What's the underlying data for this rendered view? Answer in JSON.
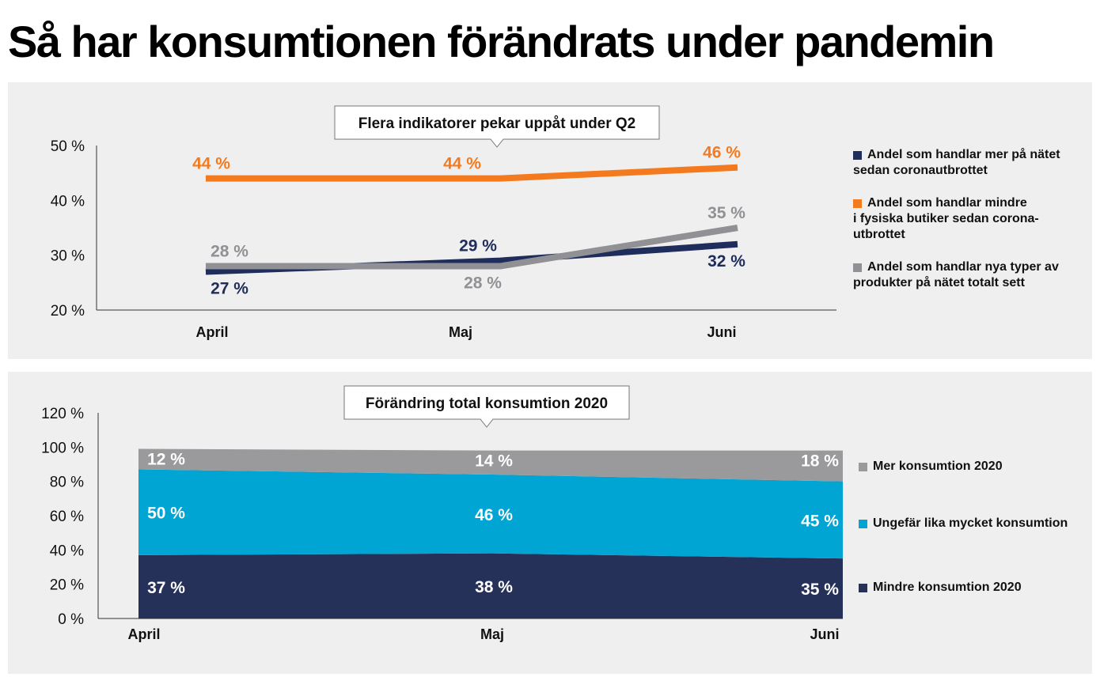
{
  "title": "Så har konsumtionen förändrats under pandemin",
  "chart_data": [
    {
      "type": "line",
      "title": "Flera indikatorer pekar uppåt under Q2",
      "categories": [
        "April",
        "Maj",
        "Juni"
      ],
      "ylim": [
        20,
        50
      ],
      "yticks": [
        "20 %",
        "30 %",
        "40 %",
        "50 %"
      ],
      "series": [
        {
          "name": "Andel som handlar mer på nätet sedan coronautbrottet",
          "color": "#1f2d5c",
          "values": [
            27,
            29,
            32
          ],
          "labels": [
            "27 %",
            "29 %",
            "32 %"
          ]
        },
        {
          "name": "Andel som handlar mindre i fysiska butiker sedan corona-utbrottet",
          "color": "#f47a1f",
          "values": [
            44,
            44,
            46
          ],
          "labels": [
            "44 %",
            "44 %",
            "46 %"
          ]
        },
        {
          "name": "Andel som handlar nya typer av produkter på nätet totalt sett",
          "color": "#909095",
          "values": [
            28,
            28,
            35
          ],
          "labels": [
            "28 %",
            "28 %",
            "35 %"
          ]
        }
      ],
      "legend_lines": [
        [
          "Andel som handlar mer på nätet",
          "sedan coronautbrottet"
        ],
        [
          "Andel som handlar mindre",
          "i fysiska butiker sedan corona-",
          "utbrottet"
        ],
        [
          "Andel som handlar nya typer av",
          "produkter på nätet totalt sett"
        ]
      ],
      "legend": "right"
    },
    {
      "type": "area",
      "stacked": true,
      "title": "Förändring total konsumtion 2020",
      "categories": [
        "April",
        "Maj",
        "Juni"
      ],
      "ylim": [
        0,
        120
      ],
      "yticks": [
        "0 %",
        "20 %",
        "40 %",
        "60 %",
        "80 %",
        "100 %",
        "120 %"
      ],
      "series": [
        {
          "name": "Mindre konsumtion 2020",
          "color": "#253159",
          "values": [
            37,
            38,
            35
          ],
          "labels": [
            "37 %",
            "38 %",
            "35 %"
          ]
        },
        {
          "name": "Ungefär lika mycket konsumtion",
          "color": "#00a5d3",
          "values": [
            50,
            46,
            45
          ],
          "labels": [
            "50 %",
            "46 %",
            "45 %"
          ]
        },
        {
          "name": "Mer konsumtion 2020",
          "color": "#9a9a9d",
          "values": [
            12,
            14,
            18
          ],
          "labels": [
            "12 %",
            "14 %",
            "18 %"
          ]
        }
      ],
      "legend": "right"
    }
  ]
}
